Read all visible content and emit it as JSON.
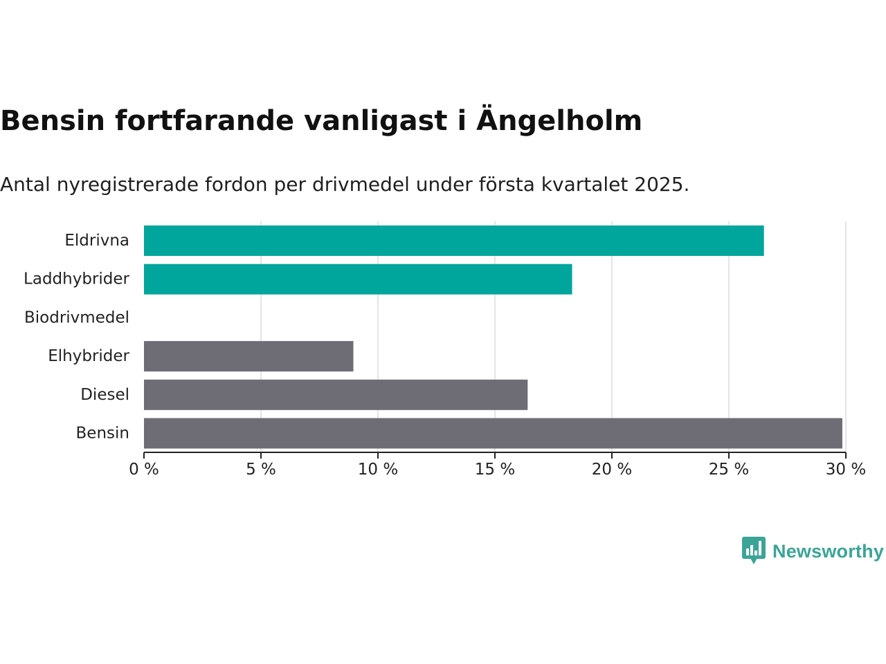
{
  "title": "Bensin fortfarande vanligast i Ängelholm",
  "subtitle": "Antal nyregistrerade fordon per drivmedel under första kvartalet 2025.",
  "brand": {
    "name": "Newsworthy",
    "icon": "newsworthy-logo-icon",
    "color": "#3aa597"
  },
  "chart_data": {
    "type": "bar",
    "orientation": "horizontal",
    "categories": [
      "Eldrivna",
      "Laddhybrider",
      "Biodrivmedel",
      "Elhybrider",
      "Diesel",
      "Bensin"
    ],
    "values": [
      26.5,
      18.3,
      0,
      8.95,
      16.4,
      29.85
    ],
    "bar_colors": [
      "#00a69c",
      "#00a69c",
      "#6e6c75",
      "#6e6c75",
      "#6e6c75",
      "#6e6c75"
    ],
    "xlim": [
      0,
      30
    ],
    "x_ticks": [
      0,
      5,
      10,
      15,
      20,
      25,
      30
    ],
    "x_tick_labels": [
      "0 %",
      "5 %",
      "10 %",
      "15 %",
      "20 %",
      "25 %",
      "30 %"
    ],
    "grid": true,
    "gridline_color": "#dcdcdc",
    "axis_color": "#222222"
  }
}
